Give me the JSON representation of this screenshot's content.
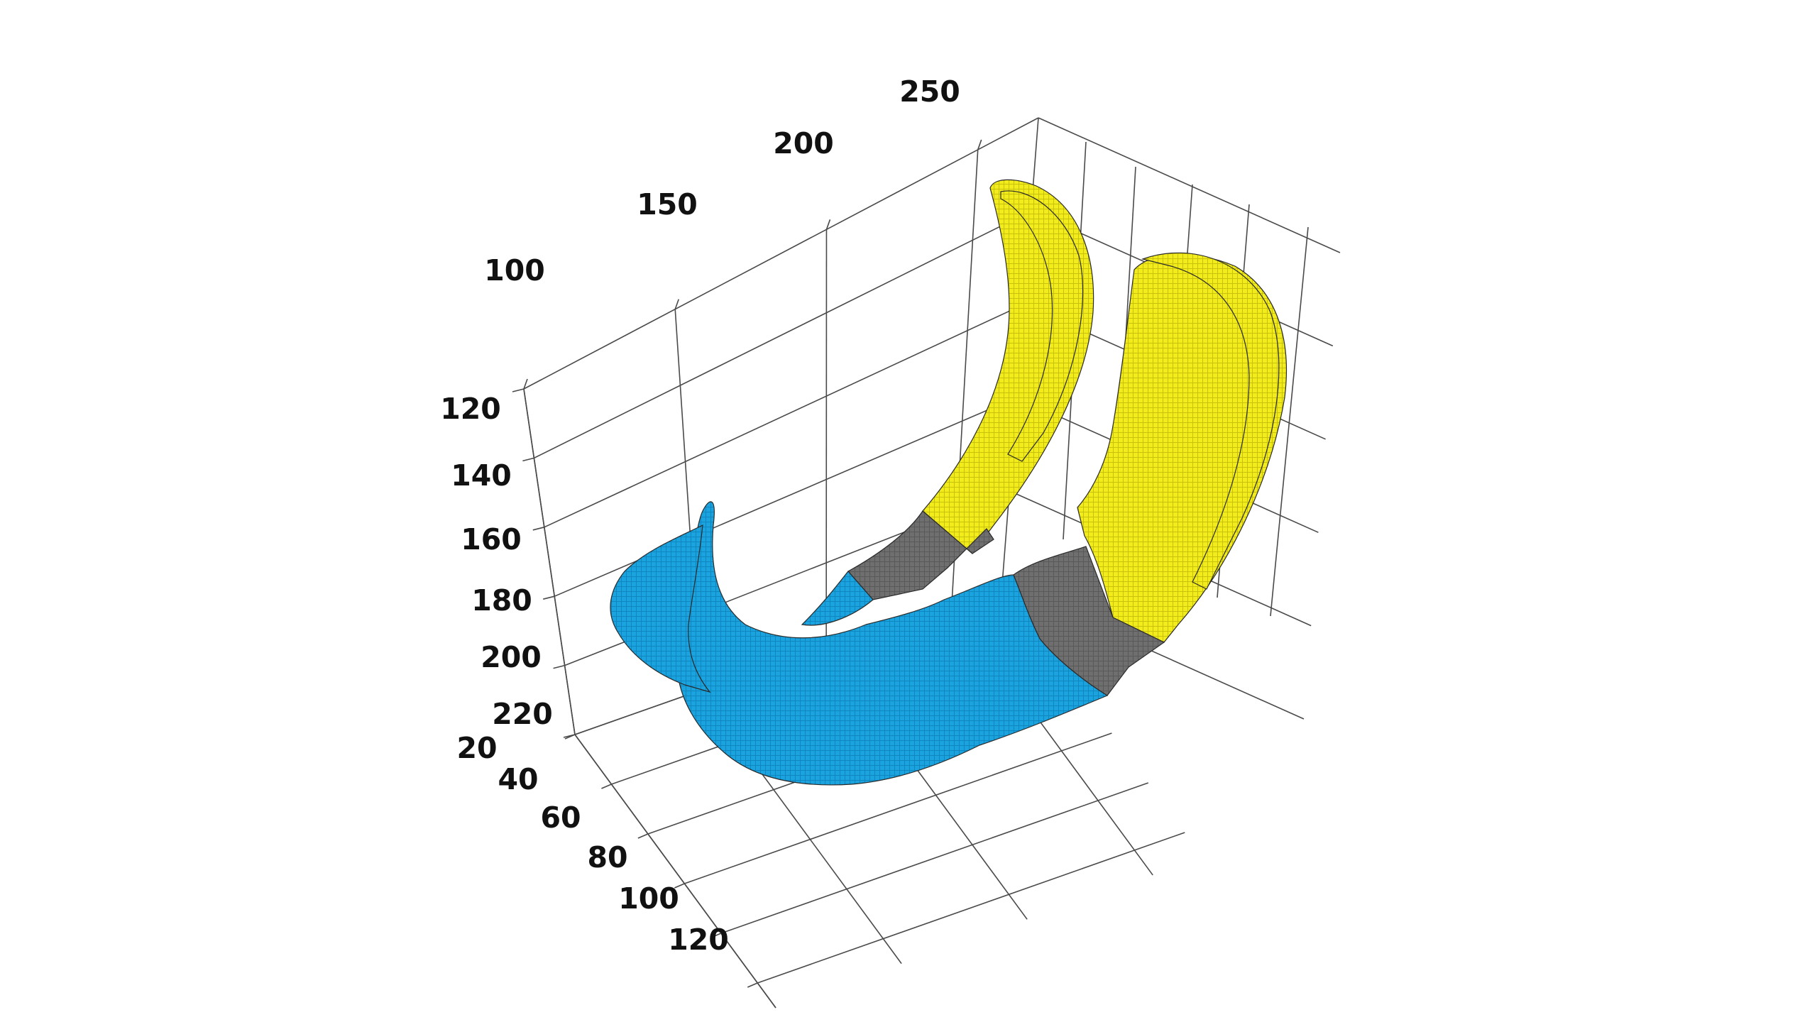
{
  "chart_data": {
    "type": "3d-voxel-surface",
    "title": "",
    "xlabel": "",
    "ylabel": "",
    "zlabel": "",
    "grid": true,
    "axes": {
      "x": {
        "ticks": [
          100,
          150,
          200,
          250
        ],
        "labels": [
          "100",
          "150",
          "200",
          "250"
        ]
      },
      "y": {
        "ticks": [
          20,
          40,
          60,
          80,
          100,
          120
        ],
        "labels": [
          "20",
          "40",
          "60",
          "80",
          "100",
          "120"
        ]
      },
      "z": {
        "ticks": [
          120,
          140,
          160,
          180,
          200,
          220
        ],
        "labels": [
          "120",
          "140",
          "160",
          "180",
          "200",
          "220"
        ]
      }
    },
    "regions": [
      {
        "id": "anterior",
        "color": "#1aa3df"
      },
      {
        "id": "middle",
        "color": "#6f6f6f"
      },
      {
        "id": "posterior",
        "color": "#f2ec1c"
      }
    ]
  }
}
